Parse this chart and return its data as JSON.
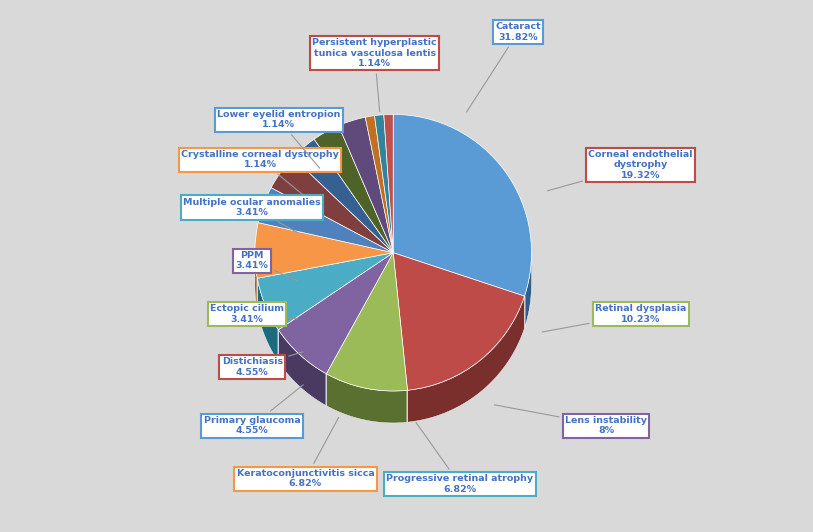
{
  "labels": [
    "Cataract",
    "Corneal endothelial\ndystrophy",
    "Retinal dysplasia",
    "Lens instability",
    "Progressive retinal atrophy",
    "Keratoconjunctivitis sicca",
    "Primary glaucoma",
    "Distichiasis",
    "Ectopic cilium",
    "PPM",
    "Multiple ocular anomalies",
    "Crystalline corneal dystrophy",
    "Lower eyelid entropion",
    "Persistent hyperplastic\ntunica vasculosa lentis"
  ],
  "values": [
    31.82,
    19.32,
    10.23,
    8.0,
    6.82,
    6.82,
    4.55,
    4.55,
    3.41,
    3.41,
    3.41,
    1.14,
    1.14,
    1.14
  ],
  "colors": [
    "#5B9BD5",
    "#BE4B48",
    "#9BBB59",
    "#8064A2",
    "#4BACC6",
    "#F79646",
    "#4F81BD",
    "#7F3F3F",
    "#376092",
    "#4F6228",
    "#604A7B",
    "#C07020",
    "#31849B",
    "#C0504D"
  ],
  "dark_colors": [
    "#2E5F8A",
    "#7A2F2D",
    "#5A7030",
    "#4A3A62",
    "#1A6A80",
    "#A05010",
    "#2A4F7A",
    "#4A1F1F",
    "#1A3A62",
    "#2A3A10",
    "#302040",
    "#704010",
    "#1A5060",
    "#703030"
  ],
  "box_border_colors": [
    "#5B9BD5",
    "#BE4B48",
    "#9BBB59",
    "#8064A2",
    "#4BACC6",
    "#F79646",
    "#4F81BD",
    "#BE4B48",
    "#9BBB59",
    "#8064A2",
    "#4BACC6",
    "#F79646",
    "#4F81BD",
    "#BE4B48"
  ],
  "box_fill_colors": [
    "#FFFFFF",
    "#FFFFFF",
    "#FFFFFF",
    "#FFFFFF",
    "#FFFFFF",
    "#FFFFFF",
    "#FFFFFF",
    "#FFFFFF",
    "#FFFFFF",
    "#FFFFFF",
    "#FFFFFF",
    "#FFFFFF",
    "#FFFFFF",
    "#FFFFFF"
  ],
  "text_color": "#4472C4",
  "background_color": "#D9D9D9",
  "depth": 0.12,
  "startangle": 90,
  "figsize": [
    8.13,
    5.32
  ]
}
